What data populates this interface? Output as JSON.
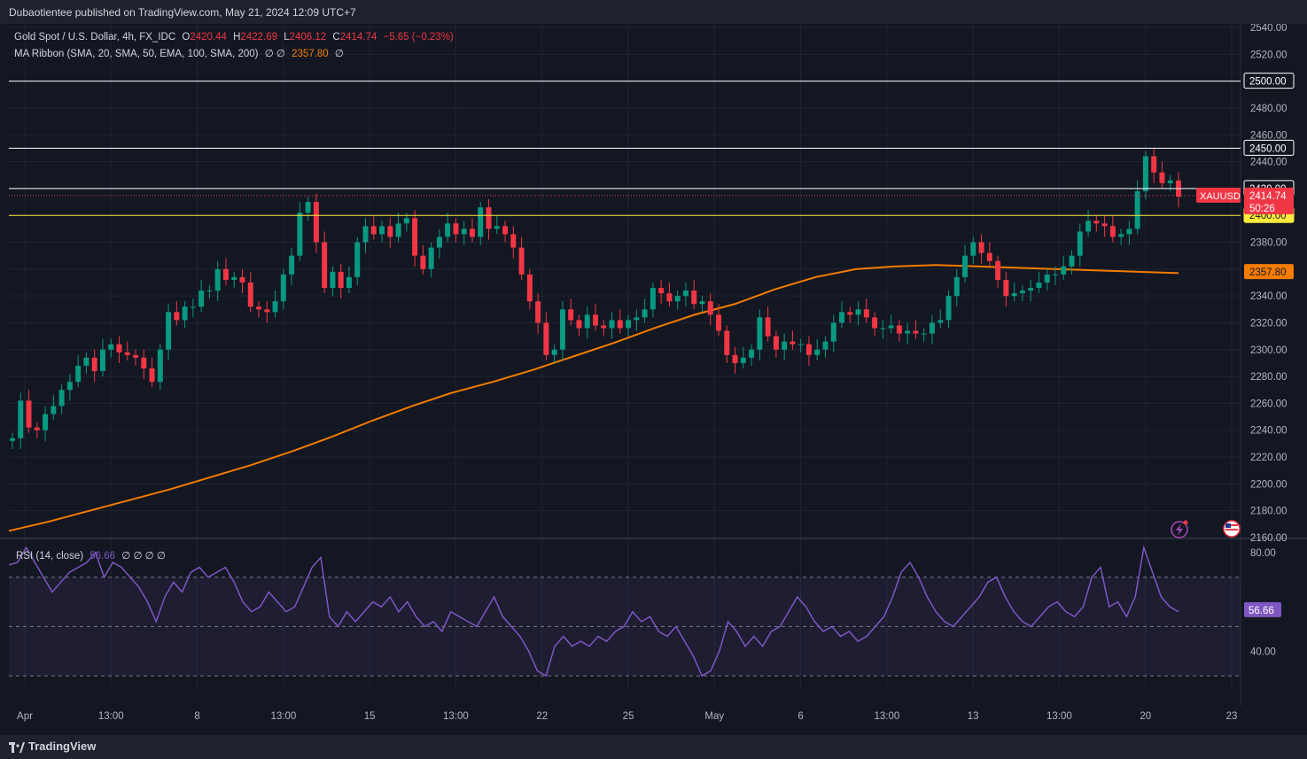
{
  "header": {
    "published": "Dubaotientee published on TradingView.com, May 21, 2024 12:09 UTC+7"
  },
  "legend": {
    "symbol": "Gold Spot / U.S. Dollar, 4h, FX_IDC",
    "o_label": "O",
    "o_value": "2420.44",
    "h_label": "H",
    "h_value": "2422.69",
    "l_label": "L",
    "l_value": "2406.12",
    "c_label": "C",
    "c_value": "2414.74",
    "change": "−5.65 (−0.23%)",
    "ma_label": "MA Ribbon (SMA, 20, SMA, 50, EMA, 100, SMA, 200)",
    "ma_nulls": "∅  ∅",
    "ma_value": "2357.80",
    "ma_null_tail": "∅",
    "rsi_label": "RSI (14, close)",
    "rsi_value": "56.66",
    "rsi_nulls": "∅  ∅  ∅  ∅"
  },
  "colors": {
    "up": "#089981",
    "down": "#f23645",
    "ma": "#f57c00",
    "rsi": "#7e57c2",
    "support": "#ffeb3b",
    "resistance": "#ffffff",
    "background": "#131722"
  },
  "footer": {
    "brand": "TradingView"
  },
  "chart_data": [
    {
      "type": "candlestick",
      "title": "Gold Spot / U.S. Dollar, 4h, FX_IDC",
      "symbol_tag": "XAUUSD",
      "last_price": "2414.74",
      "countdown": "50:26",
      "ylim": [
        2160,
        2540
      ],
      "y_ticks": [
        "2540.00",
        "2520.00",
        "2500.00",
        "2480.00",
        "2460.00",
        "2440.00",
        "2420.00",
        "2400.00",
        "2380.00",
        "2360.00",
        "2340.00",
        "2320.00",
        "2300.00",
        "2280.00",
        "2260.00",
        "2240.00",
        "2220.00",
        "2200.00",
        "2180.00",
        "2160.00"
      ],
      "x_ticks": [
        "Apr",
        "13:00",
        "8",
        "13:00",
        "15",
        "13:00",
        "22",
        "25",
        "May",
        "6",
        "13:00",
        "13",
        "13:00",
        "20",
        "23"
      ],
      "horizontal_lines": [
        {
          "price": 2500,
          "label": "2500.00",
          "color": "#ffffff"
        },
        {
          "price": 2450,
          "label": "2450.00",
          "color": "#ffffff"
        },
        {
          "price": 2420,
          "label": "2420.00",
          "color": "#ffffff"
        },
        {
          "price": 2400,
          "label": "2400.00",
          "color": "#ffeb3b"
        }
      ],
      "ma_label_value": "2357.80",
      "closes": [
        2234,
        2262,
        2242,
        2240,
        2252,
        2258,
        2270,
        2276,
        2288,
        2294,
        2284,
        2300,
        2304,
        2298,
        2296,
        2294,
        2286,
        2276,
        2300,
        2328,
        2322,
        2332,
        2332,
        2344,
        2344,
        2360,
        2352,
        2354,
        2350,
        2332,
        2330,
        2328,
        2336,
        2356,
        2370,
        2402,
        2410,
        2380,
        2346,
        2358,
        2346,
        2354,
        2380,
        2392,
        2386,
        2392,
        2384,
        2394,
        2398,
        2370,
        2360,
        2376,
        2384,
        2394,
        2386,
        2390,
        2384,
        2406,
        2390,
        2392,
        2386,
        2376,
        2356,
        2336,
        2320,
        2296,
        2300,
        2330,
        2322,
        2316,
        2326,
        2318,
        2316,
        2322,
        2316,
        2322,
        2324,
        2330,
        2346,
        2342,
        2336,
        2340,
        2344,
        2334,
        2336,
        2326,
        2314,
        2296,
        2290,
        2294,
        2300,
        2324,
        2310,
        2300,
        2306,
        2304,
        2304,
        2296,
        2300,
        2306,
        2320,
        2328,
        2326,
        2330,
        2324,
        2316,
        2316,
        2318,
        2312,
        2314,
        2312,
        2312,
        2320,
        2322,
        2340,
        2354,
        2370,
        2380,
        2372,
        2366,
        2352,
        2340,
        2342,
        2344,
        2346,
        2350,
        2356,
        2356,
        2362,
        2370,
        2388,
        2396,
        2394,
        2392,
        2384,
        2386,
        2390,
        2418,
        2444,
        2432,
        2424,
        2426,
        2414
      ],
      "ma": [
        2165,
        2172,
        2180,
        2188,
        2196,
        2205,
        2214,
        2224,
        2235,
        2247,
        2258,
        2268,
        2276,
        2285,
        2295,
        2305,
        2316,
        2326,
        2334,
        2345,
        2354,
        2360,
        2362,
        2363,
        2362,
        2361,
        2360,
        2359,
        2358,
        2357
      ],
      "rsi": {
        "name": "RSI (14, close)",
        "ylim": [
          25,
          85
        ],
        "y_ticks": [
          "80.00",
          "60.00",
          "40.00"
        ],
        "bands": [
          70,
          50,
          30
        ],
        "last_value": "56.66",
        "values": [
          75,
          76,
          82,
          76,
          70,
          64,
          68,
          72,
          74,
          76,
          80,
          70,
          76,
          74,
          70,
          66,
          60,
          52,
          62,
          68,
          64,
          72,
          74,
          70,
          72,
          74,
          68,
          60,
          56,
          58,
          64,
          60,
          56,
          58,
          66,
          74,
          78,
          54,
          50,
          56,
          52,
          56,
          60,
          58,
          62,
          56,
          60,
          54,
          50,
          52,
          48,
          56,
          54,
          52,
          50,
          56,
          62,
          54,
          50,
          46,
          40,
          32,
          30,
          42,
          46,
          42,
          44,
          42,
          46,
          44,
          48,
          50,
          56,
          52,
          54,
          48,
          46,
          50,
          44,
          38,
          30,
          32,
          40,
          52,
          48,
          42,
          46,
          42,
          48,
          50,
          56,
          62,
          58,
          52,
          48,
          50,
          46,
          48,
          44,
          46,
          50,
          54,
          62,
          72,
          76,
          70,
          62,
          56,
          52,
          50,
          54,
          58,
          62,
          68,
          70,
          62,
          56,
          52,
          50,
          54,
          58,
          60,
          56,
          54,
          58,
          70,
          74,
          58,
          60,
          54,
          62,
          82,
          72,
          62,
          58,
          56
        ]
      }
    }
  ]
}
